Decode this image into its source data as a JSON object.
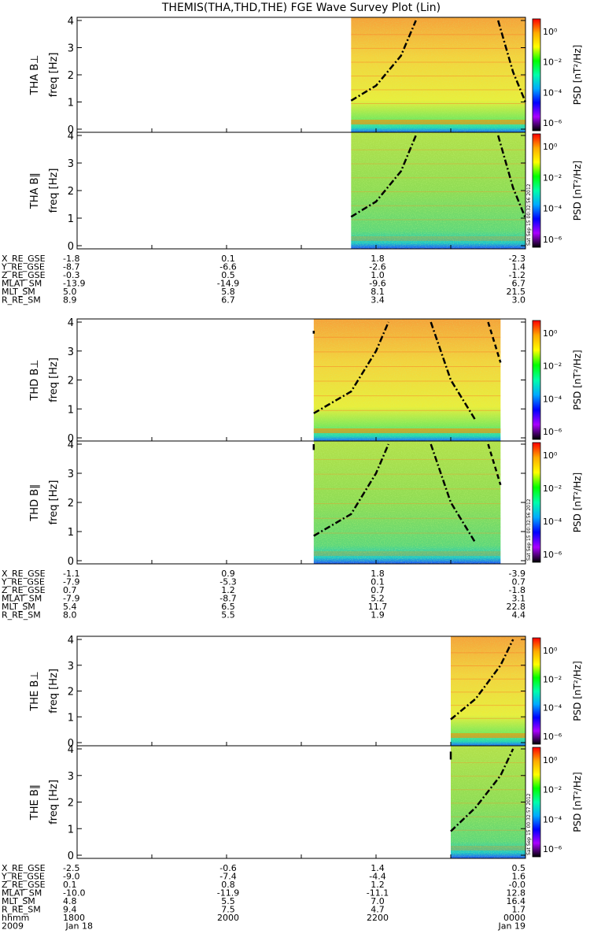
{
  "title": "THEMIS(THA,THD,THE) FGE Wave Survey Plot (Lin)",
  "stamps": [
    "Sat Sep 15 00:32:56 2012",
    "Sat Sep 15 00:32:56 2012",
    "Sat Sep 15 00:32:57 2012"
  ],
  "colorbar": {
    "label": "PSD [nT²/Hz]",
    "ticks": [
      "10⁰",
      "10⁻²",
      "10⁻⁴",
      "10⁻⁶"
    ],
    "colors": [
      "#ff0000",
      "#ffaa00",
      "#ffff00",
      "#00ff00",
      "#00ffaa",
      "#00aaff",
      "#0000ff",
      "#aa00ff",
      "#000000"
    ]
  },
  "time_axis": {
    "labels": [
      "hhmm",
      "2009"
    ],
    "ticks": [
      "1800",
      "2000",
      "2200",
      "0000"
    ],
    "dates": [
      "Jan 18",
      "Jan 19"
    ]
  },
  "chart_data": [
    {
      "type": "heatmap",
      "title": "THA B⊥",
      "ylabel": "freq [Hz]",
      "ylim": [
        0,
        4
      ],
      "yticks": [
        "0",
        "1",
        "2",
        "3",
        "4"
      ],
      "data_start_hhmm": "2140",
      "data_end_hhmm": "0000",
      "cutoff_left": [
        [
          2140,
          1.05
        ],
        [
          2200,
          1.6
        ],
        [
          2220,
          2.7
        ],
        [
          2232,
          4.0
        ]
      ],
      "cutoff_right": [
        [
          2338,
          4.0
        ],
        [
          2350,
          2.1
        ],
        [
          0,
          1.0
        ]
      ]
    },
    {
      "type": "heatmap",
      "title": "THA B∥",
      "ylabel": "freq [Hz]",
      "ylim": [
        0,
        4
      ],
      "yticks": [
        "0",
        "1",
        "2",
        "3",
        "4"
      ],
      "data_start_hhmm": "2140",
      "data_end_hhmm": "0000",
      "cutoff_left": [
        [
          2140,
          1.05
        ],
        [
          2200,
          1.6
        ],
        [
          2220,
          2.7
        ],
        [
          2232,
          4.0
        ]
      ],
      "cutoff_right": [
        [
          2338,
          4.0
        ],
        [
          2350,
          2.1
        ],
        [
          0,
          1.0
        ]
      ]
    },
    {
      "type": "heatmap",
      "title": "THD B⊥",
      "ylabel": "freq [Hz]",
      "ylim": [
        0,
        4
      ],
      "yticks": [
        "0",
        "1",
        "2",
        "3",
        "4"
      ],
      "data_start_hhmm": "2110",
      "data_end_hhmm": "2340",
      "cutoff_left": [
        [
          2110,
          0.85
        ],
        [
          2140,
          1.6
        ],
        [
          2200,
          3.0
        ],
        [
          2210,
          4.0
        ]
      ],
      "cutoff_right": [
        [
          2244,
          4.0
        ],
        [
          2300,
          2.0
        ],
        [
          2320,
          0.6
        ]
      ],
      "cutoff_extra": [
        [
          2110,
          3.6
        ],
        [
          2110,
          3.7
        ]
      ],
      "cutoff_dashed": [
        [
          2330,
          4.0
        ],
        [
          2340,
          2.6
        ]
      ]
    },
    {
      "type": "heatmap",
      "title": "THD B∥",
      "ylabel": "freq [Hz]",
      "ylim": [
        0,
        4
      ],
      "yticks": [
        "0",
        "1",
        "2",
        "3",
        "4"
      ],
      "data_start_hhmm": "2110",
      "data_end_hhmm": "2340",
      "cutoff_left": [
        [
          2110,
          0.85
        ],
        [
          2140,
          1.6
        ],
        [
          2200,
          3.0
        ],
        [
          2210,
          4.0
        ]
      ],
      "cutoff_right": [
        [
          2244,
          4.0
        ],
        [
          2300,
          2.0
        ],
        [
          2320,
          0.6
        ]
      ],
      "cutoff_extra": [
        [
          2110,
          3.8
        ],
        [
          2110,
          4.0
        ]
      ],
      "cutoff_dashed": [
        [
          2330,
          4.0
        ],
        [
          2340,
          2.6
        ]
      ]
    },
    {
      "type": "heatmap",
      "title": "THE B⊥",
      "ylabel": "freq [Hz]",
      "ylim": [
        0,
        4
      ],
      "yticks": [
        "0",
        "1",
        "2",
        "3",
        "4"
      ],
      "data_start_hhmm": "2300",
      "data_end_hhmm": "0000",
      "cutoff_left": [
        [
          2300,
          0.9
        ],
        [
          2320,
          1.7
        ],
        [
          2340,
          3.0
        ],
        [
          2350,
          4.0
        ]
      ]
    },
    {
      "type": "heatmap",
      "title": "THE B∥",
      "ylabel": "freq [Hz]",
      "ylim": [
        0,
        4
      ],
      "yticks": [
        "0",
        "1",
        "2",
        "3",
        "4"
      ],
      "data_start_hhmm": "2300",
      "data_end_hhmm": "0000",
      "cutoff_left": [
        [
          2300,
          0.9
        ],
        [
          2320,
          1.8
        ],
        [
          2340,
          3.0
        ],
        [
          2350,
          4.0
        ]
      ],
      "cutoff_extra": [
        [
          2300,
          3.6
        ],
        [
          2300,
          3.9
        ]
      ]
    }
  ],
  "ephemeris": [
    {
      "names": [
        "X_RE_GSE",
        "Y_RE_GSE",
        "Z_RE_GSE",
        "MLAT_SM",
        "MLT_SM",
        "R_RE_SM"
      ],
      "values": [
        [
          "-1.8",
          "0.1",
          "1.8",
          "-2.3"
        ],
        [
          "-8.7",
          "-6.6",
          "-2.6",
          "1.4"
        ],
        [
          "-0.3",
          "0.5",
          "1.0",
          "-1.2"
        ],
        [
          "-13.9",
          "-14.9",
          "-9.6",
          "6.7"
        ],
        [
          "5.0",
          "5.8",
          "8.1",
          "21.5"
        ],
        [
          "8.9",
          "6.7",
          "3.4",
          "3.0"
        ]
      ]
    },
    {
      "names": [
        "X_RE_GSE",
        "Y_RE_GSE",
        "Z_RE_GSE",
        "MLAT_SM",
        "MLT_SM",
        "R_RE_SM"
      ],
      "values": [
        [
          "-1.1",
          "0.9",
          "1.8",
          "-3.9"
        ],
        [
          "-7.9",
          "-5.3",
          "0.1",
          "0.7"
        ],
        [
          "0.7",
          "1.2",
          "0.7",
          "-1.8"
        ],
        [
          "-7.9",
          "-8.7",
          "5.2",
          "3.1"
        ],
        [
          "5.4",
          "6.5",
          "11.7",
          "22.8"
        ],
        [
          "8.0",
          "5.5",
          "1.9",
          "4.4"
        ]
      ]
    },
    {
      "names": [
        "X_RE_GSE",
        "Y_RE_GSE",
        "Z_RE_GSE",
        "MLAT_SM",
        "MLT_SM",
        "R_RE_SM"
      ],
      "values": [
        [
          "-2.5",
          "-0.6",
          "1.4",
          "0.5"
        ],
        [
          "-9.0",
          "-7.4",
          "-4.4",
          "1.6"
        ],
        [
          "0.1",
          "0.8",
          "1.2",
          "-0.0"
        ],
        [
          "-10.0",
          "-11.9",
          "-11.1",
          "12.8"
        ],
        [
          "4.8",
          "5.5",
          "7.0",
          "16.4"
        ],
        [
          "9.4",
          "7.5",
          "4.7",
          "1.7"
        ]
      ]
    }
  ]
}
